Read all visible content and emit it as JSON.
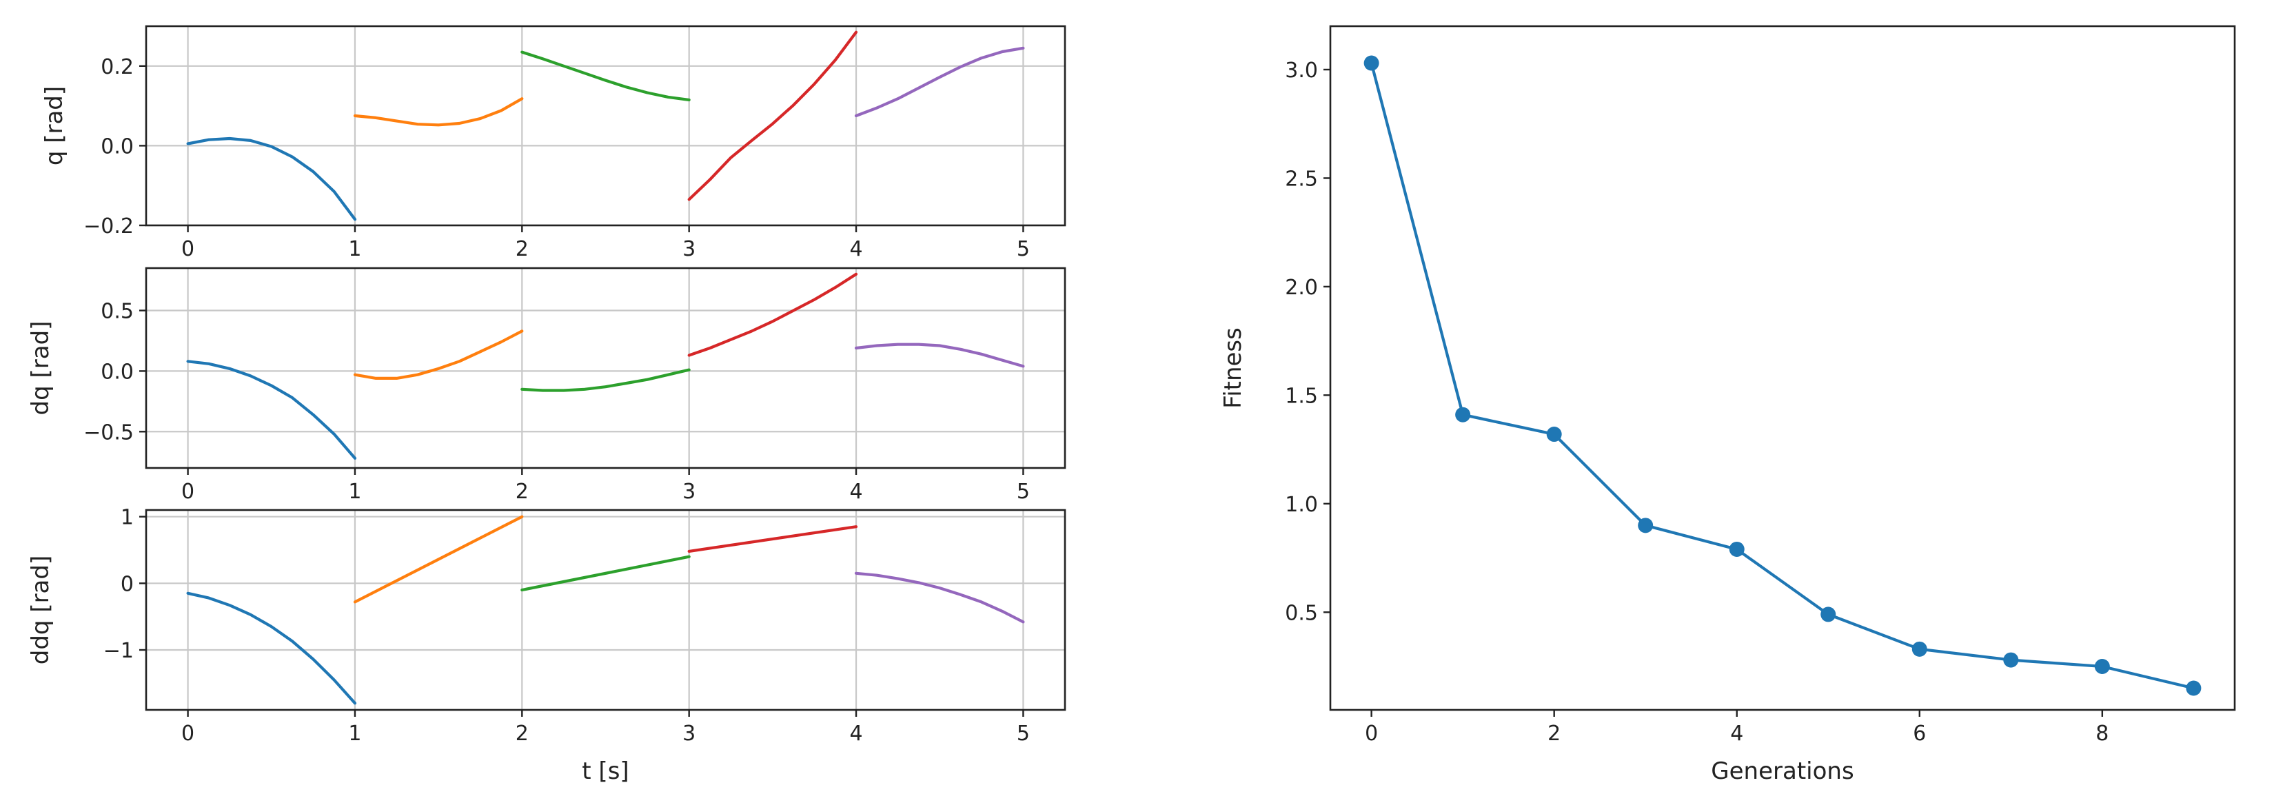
{
  "chart_data": [
    {
      "type": "line",
      "ylabel": "q [rad]",
      "xlabel": "",
      "xlim": [
        -0.25,
        5.25
      ],
      "ylim": [
        -0.2,
        0.3
      ],
      "xticks": [
        0,
        1,
        2,
        3,
        4,
        5
      ],
      "yticks": [
        -0.2,
        0.0,
        0.2
      ],
      "ytick_labels": [
        "−0.2",
        "0.0",
        "0.2"
      ],
      "grid": true,
      "series": [
        {
          "color": "#1f77b4",
          "x": [
            0,
            0.125,
            0.25,
            0.375,
            0.5,
            0.625,
            0.75,
            0.875,
            1
          ],
          "y": [
            0.005,
            0.015,
            0.018,
            0.013,
            -0.002,
            -0.028,
            -0.065,
            -0.115,
            -0.185
          ]
        },
        {
          "color": "#ff7f0e",
          "x": [
            1,
            1.125,
            1.25,
            1.375,
            1.5,
            1.625,
            1.75,
            1.875,
            2
          ],
          "y": [
            0.075,
            0.07,
            0.062,
            0.054,
            0.052,
            0.056,
            0.068,
            0.088,
            0.118
          ]
        },
        {
          "color": "#2ca02c",
          "x": [
            2,
            2.125,
            2.25,
            2.375,
            2.5,
            2.625,
            2.75,
            2.875,
            3
          ],
          "y": [
            0.235,
            0.218,
            0.2,
            0.182,
            0.164,
            0.147,
            0.133,
            0.122,
            0.115
          ]
        },
        {
          "color": "#d62728",
          "x": [
            4,
            3.875,
            3.75,
            3.625,
            3.5,
            3.375,
            3.25,
            3.125,
            3
          ],
          "y": [
            0.285,
            0.215,
            0.155,
            0.102,
            0.055,
            0.013,
            -0.03,
            -0.085,
            -0.135
          ]
        },
        {
          "color": "#9467bd",
          "x": [
            4,
            4.125,
            4.25,
            4.375,
            4.5,
            4.625,
            4.75,
            4.875,
            5
          ],
          "y": [
            0.075,
            0.095,
            0.118,
            0.145,
            0.172,
            0.198,
            0.22,
            0.236,
            0.245
          ]
        }
      ]
    },
    {
      "type": "line",
      "ylabel": "dq [rad]",
      "xlabel": "",
      "xlim": [
        -0.25,
        5.25
      ],
      "ylim": [
        -0.8,
        0.85
      ],
      "xticks": [
        0,
        1,
        2,
        3,
        4,
        5
      ],
      "yticks": [
        -0.5,
        0.0,
        0.5
      ],
      "ytick_labels": [
        "−0.5",
        "0.0",
        "0.5"
      ],
      "grid": true,
      "series": [
        {
          "color": "#1f77b4",
          "x": [
            0,
            0.125,
            0.25,
            0.375,
            0.5,
            0.625,
            0.75,
            0.875,
            1
          ],
          "y": [
            0.08,
            0.06,
            0.02,
            -0.04,
            -0.12,
            -0.22,
            -0.36,
            -0.52,
            -0.72
          ]
        },
        {
          "color": "#ff7f0e",
          "x": [
            1,
            1.125,
            1.25,
            1.375,
            1.5,
            1.625,
            1.75,
            1.875,
            2
          ],
          "y": [
            -0.03,
            -0.06,
            -0.06,
            -0.03,
            0.02,
            0.08,
            0.16,
            0.24,
            0.33
          ]
        },
        {
          "color": "#2ca02c",
          "x": [
            2,
            2.125,
            2.25,
            2.375,
            2.5,
            2.625,
            2.75,
            2.875,
            3
          ],
          "y": [
            -0.15,
            -0.16,
            -0.16,
            -0.15,
            -0.13,
            -0.1,
            -0.07,
            -0.03,
            0.01
          ]
        },
        {
          "color": "#d62728",
          "x": [
            3,
            3.125,
            3.25,
            3.375,
            3.5,
            3.625,
            3.75,
            3.875,
            4
          ],
          "y": [
            0.13,
            0.19,
            0.26,
            0.33,
            0.41,
            0.5,
            0.59,
            0.69,
            0.8
          ]
        },
        {
          "color": "#9467bd",
          "x": [
            4,
            4.125,
            4.25,
            4.375,
            4.5,
            4.625,
            4.75,
            4.875,
            5
          ],
          "y": [
            0.19,
            0.21,
            0.22,
            0.22,
            0.21,
            0.18,
            0.14,
            0.09,
            0.04
          ]
        }
      ]
    },
    {
      "type": "line",
      "ylabel": "ddq [rad]",
      "xlabel": "t [s]",
      "xlim": [
        -0.25,
        5.25
      ],
      "ylim": [
        -1.9,
        1.1
      ],
      "xticks": [
        0,
        1,
        2,
        3,
        4,
        5
      ],
      "yticks": [
        -1,
        0,
        1
      ],
      "ytick_labels": [
        "−1",
        "0",
        "1"
      ],
      "grid": true,
      "series": [
        {
          "color": "#1f77b4",
          "x": [
            0,
            0.125,
            0.25,
            0.375,
            0.5,
            0.625,
            0.75,
            0.875,
            1
          ],
          "y": [
            -0.15,
            -0.22,
            -0.33,
            -0.47,
            -0.65,
            -0.87,
            -1.14,
            -1.45,
            -1.8
          ]
        },
        {
          "color": "#ff7f0e",
          "x": [
            1,
            2
          ],
          "y": [
            -0.28,
            1.0
          ]
        },
        {
          "color": "#2ca02c",
          "x": [
            2,
            3
          ],
          "y": [
            -0.1,
            0.4
          ]
        },
        {
          "color": "#d62728",
          "x": [
            3,
            4
          ],
          "y": [
            0.48,
            0.85
          ]
        },
        {
          "color": "#9467bd",
          "x": [
            4,
            4.125,
            4.25,
            4.375,
            4.5,
            4.625,
            4.75,
            4.875,
            5
          ],
          "y": [
            0.15,
            0.12,
            0.07,
            0.01,
            -0.07,
            -0.17,
            -0.28,
            -0.42,
            -0.58
          ]
        }
      ]
    },
    {
      "type": "line",
      "ylabel": "Fitness",
      "xlabel": "Generations",
      "xlim": [
        -0.45,
        9.45
      ],
      "ylim": [
        0.05,
        3.2
      ],
      "xticks": [
        0,
        2,
        4,
        6,
        8
      ],
      "yticks": [
        0.5,
        1.0,
        1.5,
        2.0,
        2.5,
        3.0
      ],
      "ytick_labels": [
        "0.5",
        "1.0",
        "1.5",
        "2.0",
        "2.5",
        "3.0"
      ],
      "grid": false,
      "markers": true,
      "series": [
        {
          "color": "#1f77b4",
          "x": [
            0,
            1,
            2,
            3,
            4,
            5,
            6,
            7,
            8,
            9
          ],
          "y": [
            3.03,
            1.41,
            1.32,
            0.9,
            0.79,
            0.49,
            0.33,
            0.28,
            0.25,
            0.15
          ]
        }
      ]
    }
  ]
}
